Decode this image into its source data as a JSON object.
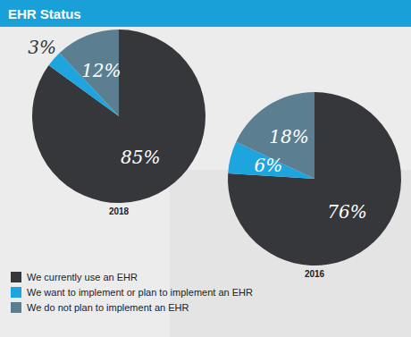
{
  "chart_data": {
    "type": "pie",
    "title": "EHR Status",
    "categories": [
      "We currently use an EHR",
      "We want to implement or plan to implement an EHR",
      "We do not plan to implement an EHR"
    ],
    "colors": [
      "#35373b",
      "#1ea5dd",
      "#5b7f91"
    ],
    "series": [
      {
        "name": "2018",
        "values": [
          85,
          3,
          12
        ],
        "value_labels": [
          "85%",
          "3%",
          "12%"
        ]
      },
      {
        "name": "2016",
        "values": [
          76,
          6,
          18
        ],
        "value_labels": [
          "76%",
          "6%",
          "18%"
        ]
      }
    ],
    "data_labels": true,
    "legend": "bottom-left"
  }
}
